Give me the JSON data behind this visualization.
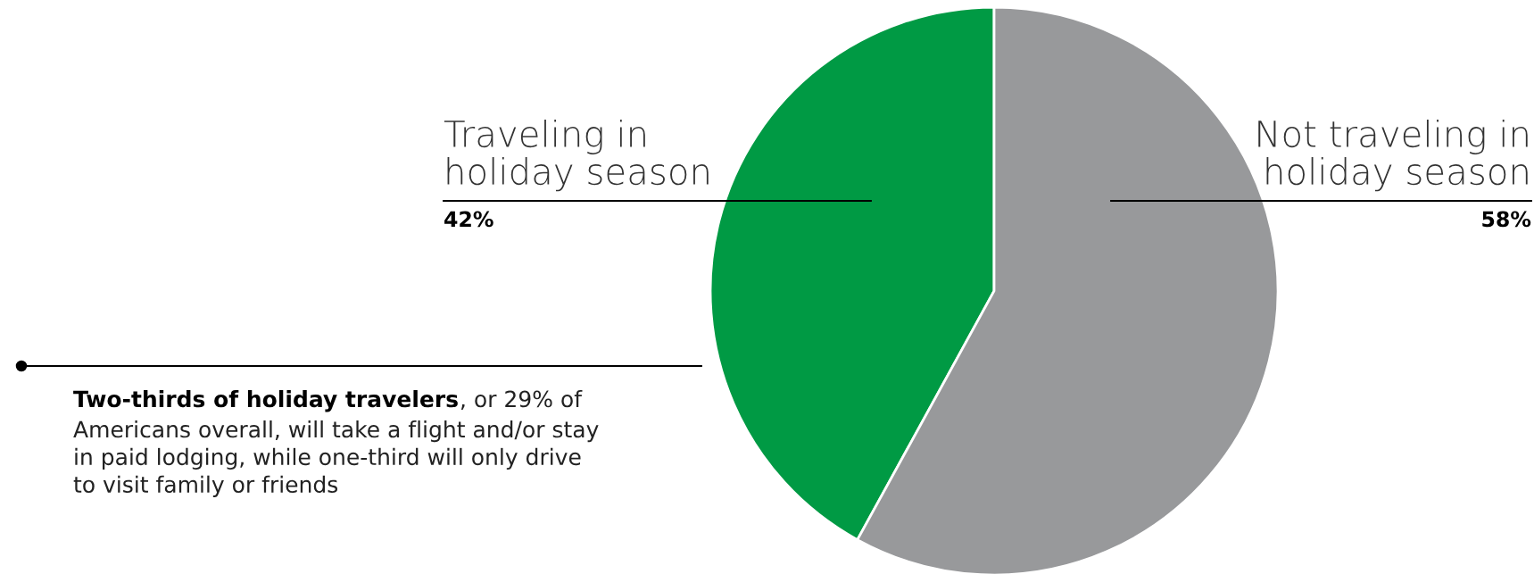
{
  "chart_data": {
    "type": "pie",
    "categories": [
      "Traveling in holiday season",
      "Not traveling in holiday season"
    ],
    "values": [
      42,
      58
    ],
    "colors": [
      "#009a44",
      "#98999b"
    ],
    "value_labels": [
      "42%",
      "58%"
    ],
    "annotations": [
      "Two-thirds of holiday travelers",
      ", or 29% of\nAmericans overall, will take a flight and/or stay\nin paid lodging, while one-third will only drive\nto visit family or friends"
    ]
  }
}
